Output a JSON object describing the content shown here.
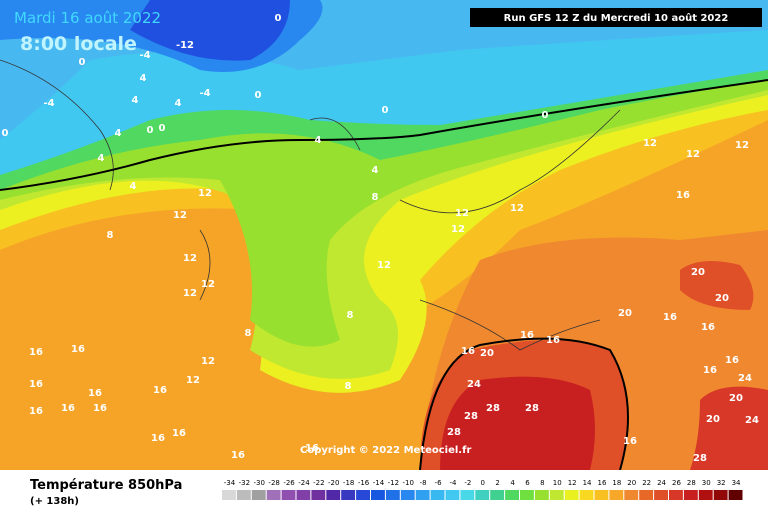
{
  "header": {
    "date": "Mardi 16 août 2022",
    "time": "8:00 locale",
    "run": "Run GFS 12 Z du Mercredi 10 août 2022"
  },
  "map": {
    "copyright": "Copyright © 2022 Meteociel.fr",
    "contour_labels": [
      -12,
      0,
      -4,
      4,
      4,
      4,
      4,
      0,
      0,
      4,
      4,
      0,
      0,
      0,
      0,
      -4,
      -4,
      0,
      4,
      4,
      8,
      12,
      12,
      8,
      12,
      12,
      12,
      12,
      12,
      12,
      12,
      12,
      12,
      12,
      16,
      20,
      20,
      20,
      16,
      16,
      16,
      16,
      16,
      20,
      16,
      16,
      24,
      20,
      24,
      28,
      28,
      28,
      28,
      16,
      24,
      28,
      20,
      8,
      8,
      8,
      12,
      12,
      16,
      16,
      16,
      16,
      16,
      16,
      16,
      16,
      16,
      16,
      16,
      16
    ]
  },
  "footer": {
    "title": "Température 850hPa",
    "lead": "(+ 138h)"
  },
  "legend": {
    "values": [
      -34,
      -32,
      -30,
      -28,
      -26,
      -24,
      -22,
      -20,
      -18,
      -16,
      -14,
      -12,
      -10,
      -8,
      -6,
      -4,
      -2,
      0,
      2,
      4,
      6,
      8,
      10,
      12,
      14,
      16,
      18,
      20,
      22,
      24,
      26,
      28,
      30,
      32,
      34
    ],
    "colors": [
      "#d8d8d8",
      "#bcbcbc",
      "#a0a0a0",
      "#a070b8",
      "#9050b0",
      "#8040a8",
      "#7030a0",
      "#5028a8",
      "#3838c0",
      "#2848d8",
      "#1858e0",
      "#2070e8",
      "#2888f0",
      "#30a0f0",
      "#38b8f0",
      "#40c8f0",
      "#48d8e8",
      "#40d0c0",
      "#40d090",
      "#50d860",
      "#70e040",
      "#98e030",
      "#c0e830",
      "#e8f020",
      "#f8d820",
      "#f8c020",
      "#f8a828",
      "#f08830",
      "#e86828",
      "#e05028",
      "#d83828",
      "#c82020",
      "#b01010",
      "#900808",
      "#600000"
    ]
  }
}
